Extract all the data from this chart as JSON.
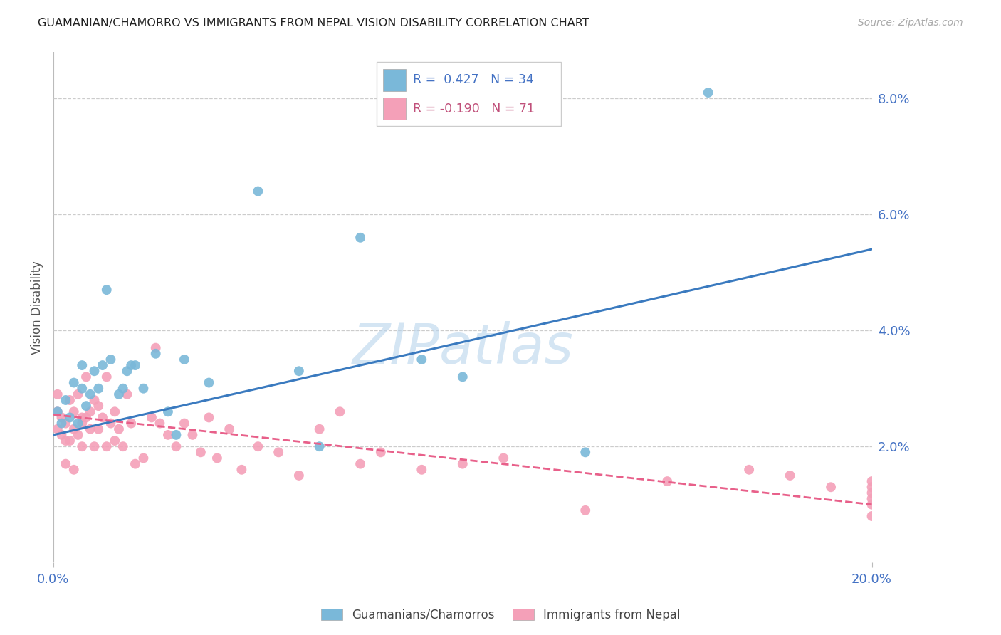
{
  "title": "GUAMANIAN/CHAMORRO VS IMMIGRANTS FROM NEPAL VISION DISABILITY CORRELATION CHART",
  "source": "Source: ZipAtlas.com",
  "ylabel": "Vision Disability",
  "right_yticks": [
    "8.0%",
    "6.0%",
    "4.0%",
    "2.0%"
  ],
  "right_ytick_vals": [
    0.08,
    0.06,
    0.04,
    0.02
  ],
  "xlim": [
    0.0,
    0.2
  ],
  "ylim": [
    0.0,
    0.088
  ],
  "legend_blue_r": "R =  0.427",
  "legend_blue_n": "N = 34",
  "legend_pink_r": "R = -0.190",
  "legend_pink_n": "N = 71",
  "blue_color": "#7ab8d9",
  "pink_color": "#f4a0b8",
  "blue_line_color": "#3a7abf",
  "pink_line_color": "#e8608a",
  "watermark_color": "#b8d4ec",
  "blue_line_y_start": 0.022,
  "blue_line_y_end": 0.054,
  "pink_line_y_start": 0.0255,
  "pink_line_y_end": 0.01,
  "blue_scatter_x": [
    0.001,
    0.002,
    0.003,
    0.004,
    0.005,
    0.006,
    0.007,
    0.007,
    0.008,
    0.009,
    0.01,
    0.011,
    0.012,
    0.013,
    0.014,
    0.016,
    0.017,
    0.018,
    0.019,
    0.02,
    0.022,
    0.025,
    0.028,
    0.03,
    0.032,
    0.038,
    0.05,
    0.06,
    0.065,
    0.075,
    0.09,
    0.1,
    0.13,
    0.16
  ],
  "blue_scatter_y": [
    0.026,
    0.024,
    0.028,
    0.025,
    0.031,
    0.024,
    0.034,
    0.03,
    0.027,
    0.029,
    0.033,
    0.03,
    0.034,
    0.047,
    0.035,
    0.029,
    0.03,
    0.033,
    0.034,
    0.034,
    0.03,
    0.036,
    0.026,
    0.022,
    0.035,
    0.031,
    0.064,
    0.033,
    0.02,
    0.056,
    0.035,
    0.032,
    0.019,
    0.081
  ],
  "pink_scatter_x": [
    0.001,
    0.001,
    0.001,
    0.002,
    0.002,
    0.003,
    0.003,
    0.003,
    0.004,
    0.004,
    0.005,
    0.005,
    0.005,
    0.006,
    0.006,
    0.007,
    0.007,
    0.007,
    0.008,
    0.008,
    0.009,
    0.009,
    0.01,
    0.01,
    0.011,
    0.011,
    0.012,
    0.013,
    0.013,
    0.014,
    0.015,
    0.015,
    0.016,
    0.017,
    0.018,
    0.019,
    0.02,
    0.022,
    0.024,
    0.025,
    0.026,
    0.028,
    0.03,
    0.032,
    0.034,
    0.036,
    0.038,
    0.04,
    0.043,
    0.046,
    0.05,
    0.055,
    0.06,
    0.065,
    0.07,
    0.075,
    0.08,
    0.09,
    0.1,
    0.11,
    0.13,
    0.15,
    0.17,
    0.18,
    0.19,
    0.2,
    0.2,
    0.2,
    0.2,
    0.2,
    0.2
  ],
  "pink_scatter_y": [
    0.026,
    0.023,
    0.029,
    0.025,
    0.022,
    0.024,
    0.021,
    0.017,
    0.028,
    0.021,
    0.026,
    0.023,
    0.016,
    0.029,
    0.022,
    0.025,
    0.02,
    0.024,
    0.032,
    0.025,
    0.023,
    0.026,
    0.028,
    0.02,
    0.023,
    0.027,
    0.025,
    0.032,
    0.02,
    0.024,
    0.026,
    0.021,
    0.023,
    0.02,
    0.029,
    0.024,
    0.017,
    0.018,
    0.025,
    0.037,
    0.024,
    0.022,
    0.02,
    0.024,
    0.022,
    0.019,
    0.025,
    0.018,
    0.023,
    0.016,
    0.02,
    0.019,
    0.015,
    0.023,
    0.026,
    0.017,
    0.019,
    0.016,
    0.017,
    0.018,
    0.009,
    0.014,
    0.016,
    0.015,
    0.013,
    0.012,
    0.014,
    0.011,
    0.013,
    0.01,
    0.008
  ]
}
